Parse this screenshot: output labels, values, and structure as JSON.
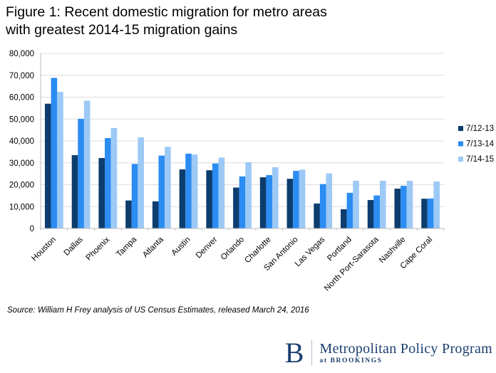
{
  "page": {
    "title_line1": "Figure 1: Recent domestic migration for metro areas",
    "title_line2": "with greatest 2014-15 migration gains",
    "source": "Source: William H Frey analysis of US Census Estimates, released March 24, 2016"
  },
  "logo": {
    "monogram": "B",
    "program": "Metropolitan Policy Program",
    "tagline": "at BROOKINGS",
    "color": "#1b3f6e"
  },
  "chart_data": {
    "type": "bar",
    "title": "Figure 1: Recent domestic migration for metro areas with greatest 2014-15 migration gains",
    "xlabel": "",
    "ylabel": "",
    "categories": [
      "Houston",
      "Dallas",
      "Phoenix",
      "Tampa",
      "Atlanta",
      "Austin",
      "Denver",
      "Orlando",
      "Charlotte",
      "San Antonio",
      "Las Vegas",
      "Portland",
      "North Port-Sarasota",
      "Nashville",
      "Cape Coral"
    ],
    "series": [
      {
        "name": "7/12-13",
        "color": "#0d3d6e",
        "values": [
          57000,
          33500,
          32200,
          12800,
          12400,
          27000,
          26600,
          18700,
          23400,
          22700,
          11400,
          8800,
          13000,
          18200,
          13600
        ]
      },
      {
        "name": "7/13-14",
        "color": "#2b8cf2",
        "values": [
          68800,
          50100,
          41300,
          29500,
          33300,
          34200,
          29700,
          23800,
          24400,
          26300,
          20300,
          16300,
          15100,
          19500,
          13700
        ]
      },
      {
        "name": "7/14-15",
        "color": "#9dc9f6",
        "values": [
          62400,
          58400,
          45900,
          41600,
          37300,
          33800,
          32400,
          30300,
          28000,
          26900,
          25200,
          21800,
          21800,
          21800,
          21500
        ]
      }
    ],
    "ylim": [
      0,
      80000
    ],
    "y_tick_step": 10000,
    "y_tick_labels": [
      "0",
      "10,000",
      "20,000",
      "30,000",
      "40,000",
      "50,000",
      "60,000",
      "70,000",
      "80,000"
    ],
    "grid": true,
    "legend_position": "right",
    "colors": {
      "gridline": "#dcdcdc",
      "axis": "#bdbdbd",
      "text": "#000000"
    }
  }
}
